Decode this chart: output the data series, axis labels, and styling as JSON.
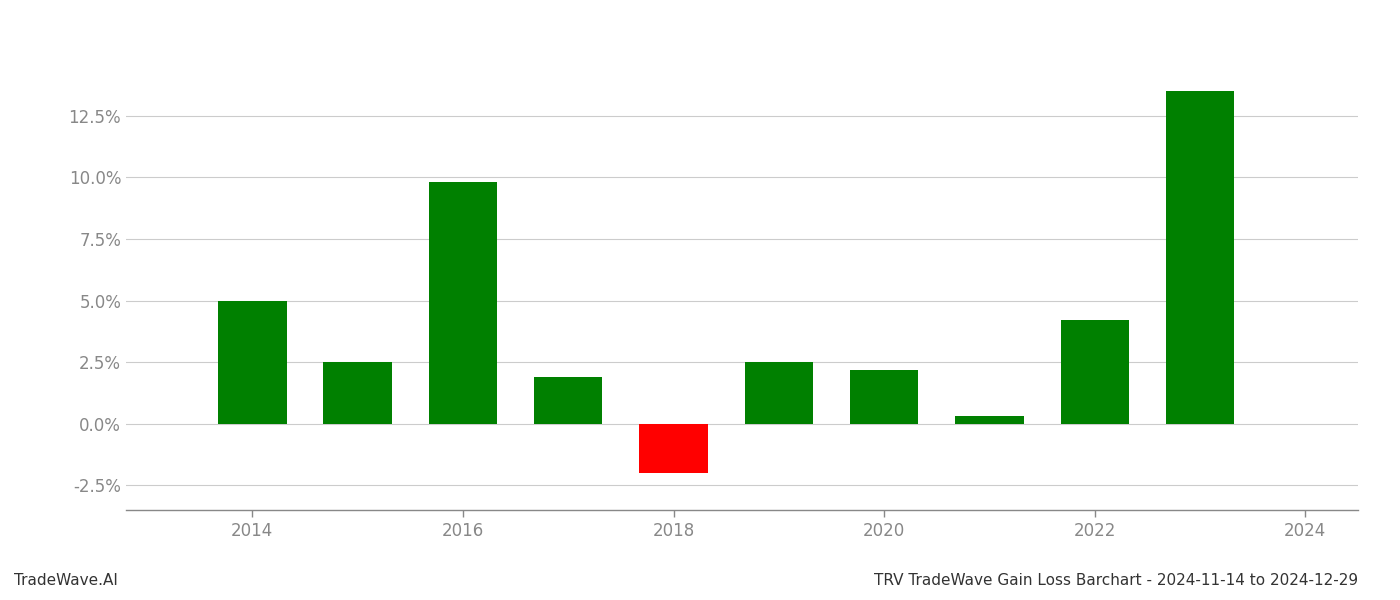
{
  "years": [
    2014,
    2015,
    2016,
    2017,
    2018,
    2019,
    2020,
    2021,
    2022,
    2023
  ],
  "values": [
    0.05,
    0.025,
    0.098,
    0.019,
    -0.02,
    0.025,
    0.022,
    0.003,
    0.042,
    0.135
  ],
  "colors": [
    "#008000",
    "#008000",
    "#008000",
    "#008000",
    "#ff0000",
    "#008000",
    "#008000",
    "#008000",
    "#008000",
    "#008000"
  ],
  "title": "TRV TradeWave Gain Loss Barchart - 2024-11-14 to 2024-12-29",
  "watermark": "TradeWave.AI",
  "ylim": [
    -0.035,
    0.155
  ],
  "yticks": [
    -0.025,
    0.0,
    0.025,
    0.05,
    0.075,
    0.1,
    0.125
  ],
  "background_color": "#ffffff",
  "grid_color": "#cccccc",
  "bar_width": 0.65,
  "title_fontsize": 11,
  "watermark_fontsize": 11,
  "tick_fontsize": 12,
  "tick_color": "#888888",
  "xlim": [
    2012.8,
    2024.5
  ],
  "xticks": [
    2014,
    2016,
    2018,
    2020,
    2022,
    2024
  ]
}
